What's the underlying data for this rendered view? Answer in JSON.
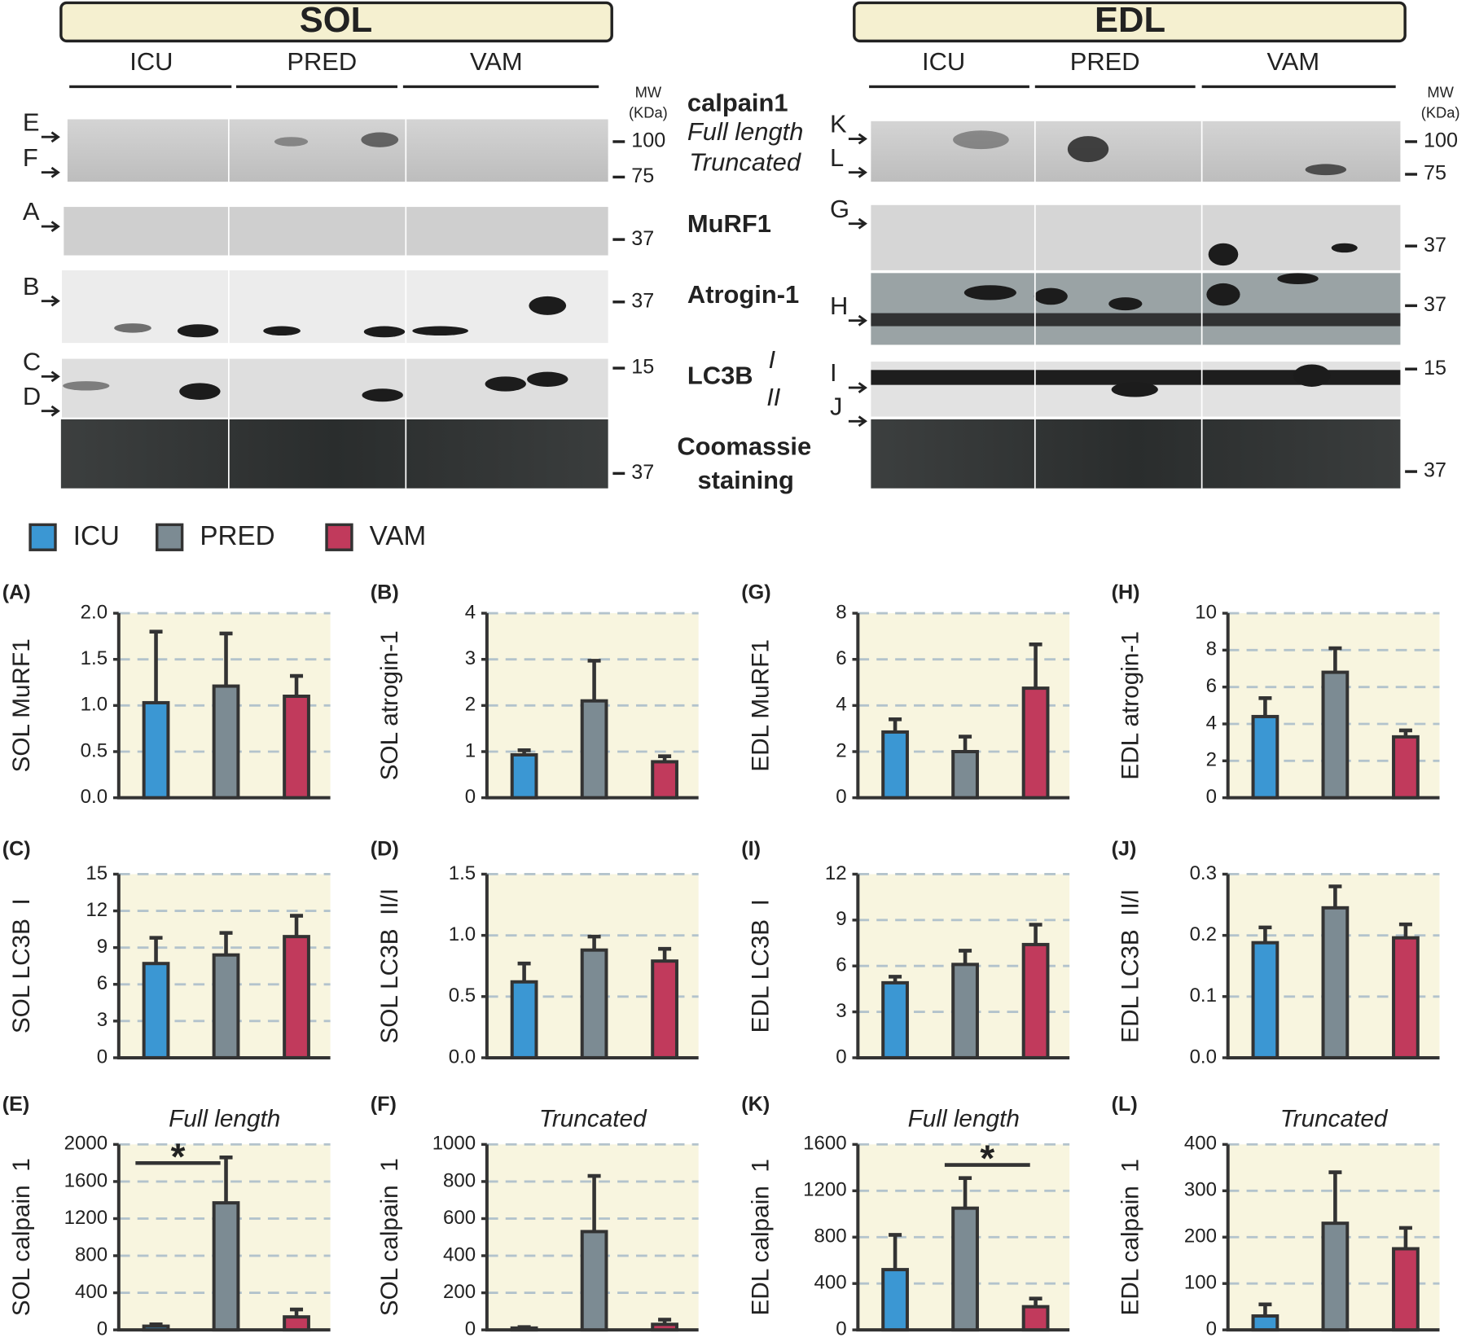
{
  "blots": {
    "left": {
      "title": "SOL",
      "groups": [
        "ICU",
        "PRED",
        "VAM"
      ],
      "mw_label": [
        "MW",
        "(KDa)"
      ],
      "mw": [
        100,
        75,
        37,
        37,
        15,
        37
      ],
      "arrows": [
        "E",
        "F",
        "A",
        "B",
        "C",
        "D"
      ]
    },
    "right": {
      "title": "EDL",
      "groups": [
        "ICU",
        "PRED",
        "VAM"
      ],
      "mw_label": [
        "MW",
        "(KDa)"
      ],
      "mw": [
        100,
        75,
        37,
        37,
        15,
        37
      ],
      "arrows": [
        "K",
        "L",
        "G",
        "H",
        "I",
        "J"
      ]
    },
    "center": {
      "calpain": "calpain1",
      "full": "Full length",
      "truncated": "Truncated",
      "murf": "MuRF1",
      "atrogin": "Atrogin-1",
      "lc3b": "LC3B",
      "lc3b_i": "I",
      "lc3b_ii": "II",
      "coomassie": "Coomassie",
      "staining": "staining"
    }
  },
  "chart_data": [
    {
      "type": "bar",
      "panel": "(A)",
      "ylabel": "SOL MuRF1",
      "ylim": [
        0,
        2
      ],
      "yticks": [
        {
          "value": 0,
          "label": "0.0"
        },
        0.5,
        {
          "value": 1,
          "label": "1.0"
        },
        1.5,
        {
          "value": 2,
          "label": "2.0"
        }
      ],
      "grid": true,
      "series": [
        {
          "name": "ICU",
          "color": "#3b97d3",
          "values": [
            1.03
          ],
          "errors": [
            0.77
          ]
        },
        {
          "name": "PRED",
          "color": "#7c8b93",
          "values": [
            1.21
          ],
          "errors": [
            0.57
          ]
        },
        {
          "name": "VAM",
          "color": "#c13a5c",
          "values": [
            1.1
          ],
          "errors": [
            0.22
          ]
        }
      ]
    },
    {
      "type": "bar",
      "panel": "(B)",
      "ylabel": "SOL atrogin-1",
      "ylim": [
        0,
        4
      ],
      "yticks": [
        0,
        1,
        2,
        3,
        4
      ],
      "grid": true,
      "series": [
        {
          "name": "ICU",
          "color": "#3b97d3",
          "values": [
            0.93
          ],
          "errors": [
            0.1
          ]
        },
        {
          "name": "PRED",
          "color": "#7c8b93",
          "values": [
            2.1
          ],
          "errors": [
            0.87
          ]
        },
        {
          "name": "VAM",
          "color": "#c13a5c",
          "values": [
            0.78
          ],
          "errors": [
            0.12
          ]
        }
      ]
    },
    {
      "type": "bar",
      "panel": "(G)",
      "ylabel": "EDL MuRF1",
      "ylim": [
        0,
        8
      ],
      "yticks": [
        0,
        2,
        4,
        6,
        8
      ],
      "grid": true,
      "series": [
        {
          "name": "ICU",
          "color": "#3b97d3",
          "values": [
            2.85
          ],
          "errors": [
            0.55
          ]
        },
        {
          "name": "PRED",
          "color": "#7c8b93",
          "values": [
            2.0
          ],
          "errors": [
            0.65
          ]
        },
        {
          "name": "VAM",
          "color": "#c13a5c",
          "values": [
            4.75
          ],
          "errors": [
            1.9
          ]
        }
      ]
    },
    {
      "type": "bar",
      "panel": "(H)",
      "ylabel": "EDL atrogin-1",
      "ylim": [
        0,
        10
      ],
      "yticks": [
        0,
        2,
        4,
        6,
        8,
        10
      ],
      "grid": true,
      "series": [
        {
          "name": "ICU",
          "color": "#3b97d3",
          "values": [
            4.4
          ],
          "errors": [
            1.0
          ]
        },
        {
          "name": "PRED",
          "color": "#7c8b93",
          "values": [
            6.8
          ],
          "errors": [
            1.3
          ]
        },
        {
          "name": "VAM",
          "color": "#c13a5c",
          "values": [
            3.3
          ],
          "errors": [
            0.35
          ]
        }
      ]
    },
    {
      "type": "bar",
      "panel": "(C)",
      "ylabel": "SOL LC3B  I",
      "ylim": [
        0,
        15
      ],
      "yticks": [
        0,
        3,
        6,
        9,
        12,
        15
      ],
      "grid": true,
      "series": [
        {
          "name": "ICU",
          "color": "#3b97d3",
          "values": [
            7.7
          ],
          "errors": [
            2.1
          ]
        },
        {
          "name": "PRED",
          "color": "#7c8b93",
          "values": [
            8.4
          ],
          "errors": [
            1.8
          ]
        },
        {
          "name": "VAM",
          "color": "#c13a5c",
          "values": [
            9.9
          ],
          "errors": [
            1.7
          ]
        }
      ]
    },
    {
      "type": "bar",
      "panel": "(D)",
      "ylabel": "SOL LC3B  II/I",
      "ylim": [
        0,
        1.5
      ],
      "yticks": [
        {
          "value": 0,
          "label": "0.0"
        },
        0.5,
        {
          "value": 1,
          "label": "1.0"
        },
        1.5
      ],
      "grid": true,
      "series": [
        {
          "name": "ICU",
          "color": "#3b97d3",
          "values": [
            0.62
          ],
          "errors": [
            0.15
          ]
        },
        {
          "name": "PRED",
          "color": "#7c8b93",
          "values": [
            0.88
          ],
          "errors": [
            0.11
          ]
        },
        {
          "name": "VAM",
          "color": "#c13a5c",
          "values": [
            0.79
          ],
          "errors": [
            0.1
          ]
        }
      ]
    },
    {
      "type": "bar",
      "panel": "(I)",
      "ylabel": "EDL LC3B  I",
      "ylim": [
        0,
        12
      ],
      "yticks": [
        0,
        3,
        6,
        9,
        12
      ],
      "grid": true,
      "series": [
        {
          "name": "ICU",
          "color": "#3b97d3",
          "values": [
            4.9
          ],
          "errors": [
            0.4
          ]
        },
        {
          "name": "PRED",
          "color": "#7c8b93",
          "values": [
            6.1
          ],
          "errors": [
            0.9
          ]
        },
        {
          "name": "VAM",
          "color": "#c13a5c",
          "values": [
            7.4
          ],
          "errors": [
            1.3
          ]
        }
      ]
    },
    {
      "type": "bar",
      "panel": "(J)",
      "ylabel": "EDL LC3B  II/I",
      "ylim": [
        0,
        0.3
      ],
      "yticks": [
        {
          "value": 0,
          "label": "0.0"
        },
        0.1,
        0.2,
        0.3
      ],
      "grid": true,
      "series": [
        {
          "name": "ICU",
          "color": "#3b97d3",
          "values": [
            0.188
          ],
          "errors": [
            0.025
          ]
        },
        {
          "name": "PRED",
          "color": "#7c8b93",
          "values": [
            0.245
          ],
          "errors": [
            0.035
          ]
        },
        {
          "name": "VAM",
          "color": "#c13a5c",
          "values": [
            0.196
          ],
          "errors": [
            0.022
          ]
        }
      ]
    },
    {
      "type": "bar",
      "panel": "(E)",
      "subtitle": "Full length",
      "ylabel": "SOL calpain  1",
      "ylim": [
        0,
        2000
      ],
      "yticks": [
        0,
        400,
        800,
        1200,
        1600,
        2000
      ],
      "grid": true,
      "annotation": "*",
      "series": [
        {
          "name": "ICU",
          "color": "#3b97d3",
          "values": [
            40
          ],
          "errors": [
            20
          ]
        },
        {
          "name": "PRED",
          "color": "#7c8b93",
          "values": [
            1370
          ],
          "errors": [
            490
          ]
        },
        {
          "name": "VAM",
          "color": "#c13a5c",
          "values": [
            140
          ],
          "errors": [
            80
          ]
        }
      ]
    },
    {
      "type": "bar",
      "panel": "(F)",
      "subtitle": "Truncated",
      "ylabel": "SOL calpain  1",
      "ylim": [
        0,
        1000
      ],
      "yticks": [
        0,
        200,
        400,
        600,
        800,
        1000
      ],
      "grid": true,
      "series": [
        {
          "name": "ICU",
          "color": "#3b97d3",
          "values": [
            10
          ],
          "errors": [
            5
          ]
        },
        {
          "name": "PRED",
          "color": "#7c8b93",
          "values": [
            530
          ],
          "errors": [
            300
          ]
        },
        {
          "name": "VAM",
          "color": "#c13a5c",
          "values": [
            30
          ],
          "errors": [
            25
          ]
        }
      ]
    },
    {
      "type": "bar",
      "panel": "(K)",
      "subtitle": "Full length",
      "ylabel": "EDL calpain  1",
      "ylim": [
        0,
        1600
      ],
      "yticks": [
        0,
        400,
        800,
        1200,
        1600
      ],
      "grid": true,
      "annotation": "*",
      "series": [
        {
          "name": "ICU",
          "color": "#3b97d3",
          "values": [
            520
          ],
          "errors": [
            300
          ]
        },
        {
          "name": "PRED",
          "color": "#7c8b93",
          "values": [
            1050
          ],
          "errors": [
            260
          ]
        },
        {
          "name": "VAM",
          "color": "#c13a5c",
          "values": [
            200
          ],
          "errors": [
            70
          ]
        }
      ]
    },
    {
      "type": "bar",
      "panel": "(L)",
      "subtitle": "Truncated",
      "ylabel": "EDL calpain  1",
      "ylim": [
        0,
        400
      ],
      "yticks": [
        0,
        100,
        200,
        300,
        400
      ],
      "grid": true,
      "series": [
        {
          "name": "ICU",
          "color": "#3b97d3",
          "values": [
            30
          ],
          "errors": [
            25
          ]
        },
        {
          "name": "PRED",
          "color": "#7c8b93",
          "values": [
            230
          ],
          "errors": [
            110
          ]
        },
        {
          "name": "VAM",
          "color": "#c13a5c",
          "values": [
            175
          ],
          "errors": [
            45
          ]
        }
      ]
    }
  ]
}
